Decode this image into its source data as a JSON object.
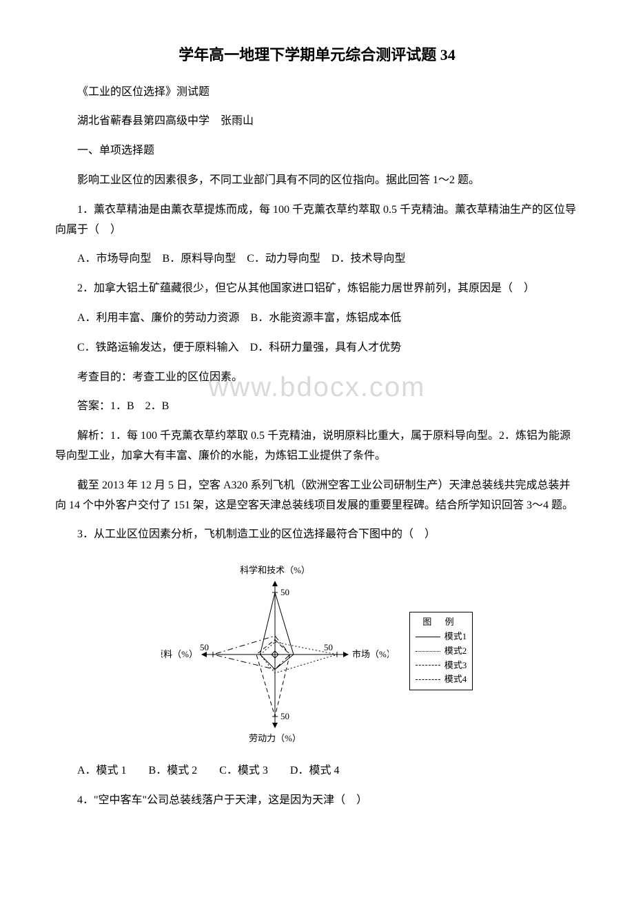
{
  "title": "学年高一地理下学期单元综合测评试题 34",
  "subtitle": "《工业的区位选择》测试题",
  "school": "湖北省蕲春县第四高级中学　张雨山",
  "section1": "一、单项选择题",
  "intro1": "影响工业区位的因素很多，不同工业部门具有不同的区位指向。据此回答 1～2 题。",
  "q1": "1．薰衣草精油是由薰衣草提炼而成，每 100 千克薰衣草约萃取 0.5 千克精油。薰衣草精油生产的区位导向属于（　）",
  "q1options": "A．市场导向型　B．原料导向型　C．动力导向型　D．技术导向型",
  "q2": "2．加拿大铝土矿蕴藏很少，但它从其他国家进口铝矿，炼铝能力居世界前列，其原因是（　）",
  "q2a": "A．利用丰富、廉价的劳动力资源　B．水能资源丰富，炼铝成本低",
  "q2b": "C．铁路运输发达，便于原料输入　D．科研力量强，具有人才优势",
  "purpose1": "考查目的：考查工业的区位因素。",
  "answer1": "答案：1．B　2．B",
  "explain1": "解析：1．每 100 千克薰衣草约萃取 0.5 千克精油，说明原料比重大，属于原料导向型。2．炼铝为能源导向型工业，加拿大有丰富、廉价的水能，为炼铝工业提供了条件。",
  "intro2": "截至 2013 年 12 月 5 日，空客 A320 系列飞机（欧洲空客工业公司研制生产）天津总装线共完成总装并向 14 个中外客户交付了 151 架，这是空客天津总装线项目发展的重要里程碑。结合所学知识回答 3～4 题。",
  "q3": "3．从工业区位因素分析，飞机制造工业的区位选择最符合下图中的（　）",
  "q3options": "A．模式 1　　B．模式 2　　C．模式 3　　D．模式 4",
  "q4": "4．\"空中客车\"公司总装线落户于天津，这是因为天津（　）",
  "watermark": "www.bdocx.com",
  "chart": {
    "type": "radar",
    "axes": [
      {
        "label": "科学和技术（%）",
        "position": "top"
      },
      {
        "label": "市场（%）",
        "position": "right"
      },
      {
        "label": "劳动力（%）",
        "position": "bottom"
      },
      {
        "label": "原料（%）",
        "position": "left"
      }
    ],
    "axis_max": 50,
    "axis_tick": 50,
    "grid_color": "#000000",
    "background_color": "#ffffff",
    "series": [
      {
        "name": "模式1",
        "values": {
          "tech": 50,
          "market": 15,
          "labor": 12,
          "material": 12
        },
        "dash": "solid"
      },
      {
        "name": "模式2",
        "values": {
          "tech": 10,
          "market": 50,
          "labor": 15,
          "material": 12
        },
        "dash": "dotted"
      },
      {
        "name": "模式3",
        "values": {
          "tech": 12,
          "market": 12,
          "labor": 50,
          "material": 15
        },
        "dash": "dash"
      },
      {
        "name": "模式4",
        "values": {
          "tech": 15,
          "market": 12,
          "labor": 12,
          "material": 50
        },
        "dash": "dashdot"
      }
    ],
    "legend": {
      "title": "图 例",
      "items": [
        "模式1",
        "模式2",
        "模式3",
        "模式4"
      ]
    },
    "font_size": 13,
    "stroke_color": "#000000",
    "center_mark": 5
  }
}
